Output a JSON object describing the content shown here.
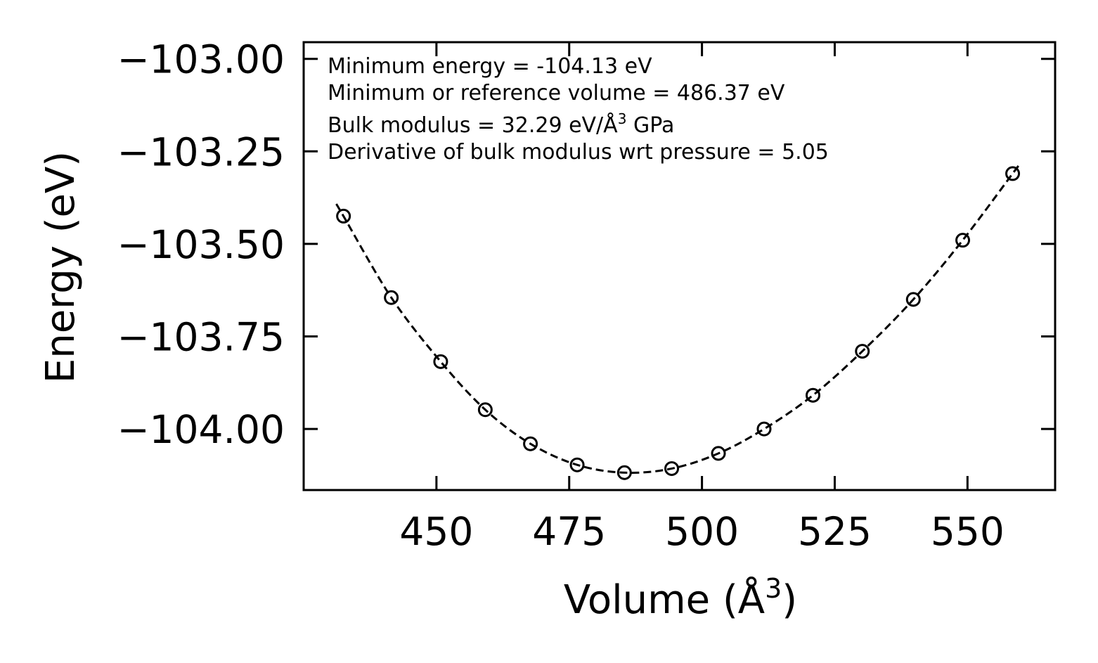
{
  "chart_data": {
    "type": "scatter",
    "xlabel_main": "Volume (Å",
    "xlabel_sup": "3",
    "xlabel_close": ")",
    "ylabel": "Energy (eV)",
    "xlim": [
      425,
      566.5
    ],
    "ylim": [
      -104.165,
      -102.955
    ],
    "x_ticks": [
      450,
      475,
      500,
      525,
      550
    ],
    "x_tick_labels": [
      "450",
      "475",
      "500",
      "525",
      "550"
    ],
    "y_ticks": [
      -103.0,
      -103.25,
      -103.5,
      -103.75,
      -104.0
    ],
    "y_tick_labels": [
      "−103.00",
      "−103.25",
      "−103.50",
      "−103.75",
      "−104.00"
    ],
    "annotations": [
      "Minimum energy = -104.13 eV",
      "Minimum or reference volume = 486.37 eV",
      "Derivative of bulk modulus wrt pressure = 5.05"
    ],
    "annotation_bulk_main": "Bulk modulus = 32.29 eV/Å",
    "annotation_bulk_sup": "3",
    "annotation_bulk_tail": " GPa",
    "series": [
      {
        "name": "data",
        "marker": "open-circle",
        "x": [
          432.5,
          441.5,
          450.8,
          459.2,
          467.7,
          476.5,
          485.4,
          494.3,
          503.1,
          511.7,
          520.9,
          530.2,
          539.8,
          549.1,
          558.5
        ],
        "y": [
          -103.425,
          -103.645,
          -103.818,
          -103.948,
          -104.04,
          -104.097,
          -104.118,
          -104.107,
          -104.066,
          -104.0,
          -103.909,
          -103.79,
          -103.65,
          -103.49,
          -103.31
        ]
      },
      {
        "name": "fit",
        "line_style": "dashed",
        "x": [
          432.5,
          441.5,
          450.8,
          459.2,
          467.7,
          476.5,
          485.4,
          494.3,
          503.1,
          511.7,
          520.9,
          530.2,
          539.8,
          549.1,
          558.5
        ],
        "y": [
          -103.425,
          -103.645,
          -103.818,
          -103.948,
          -104.04,
          -104.097,
          -104.118,
          -104.107,
          -104.066,
          -104.0,
          -103.909,
          -103.79,
          -103.65,
          -103.49,
          -103.31
        ]
      }
    ]
  }
}
